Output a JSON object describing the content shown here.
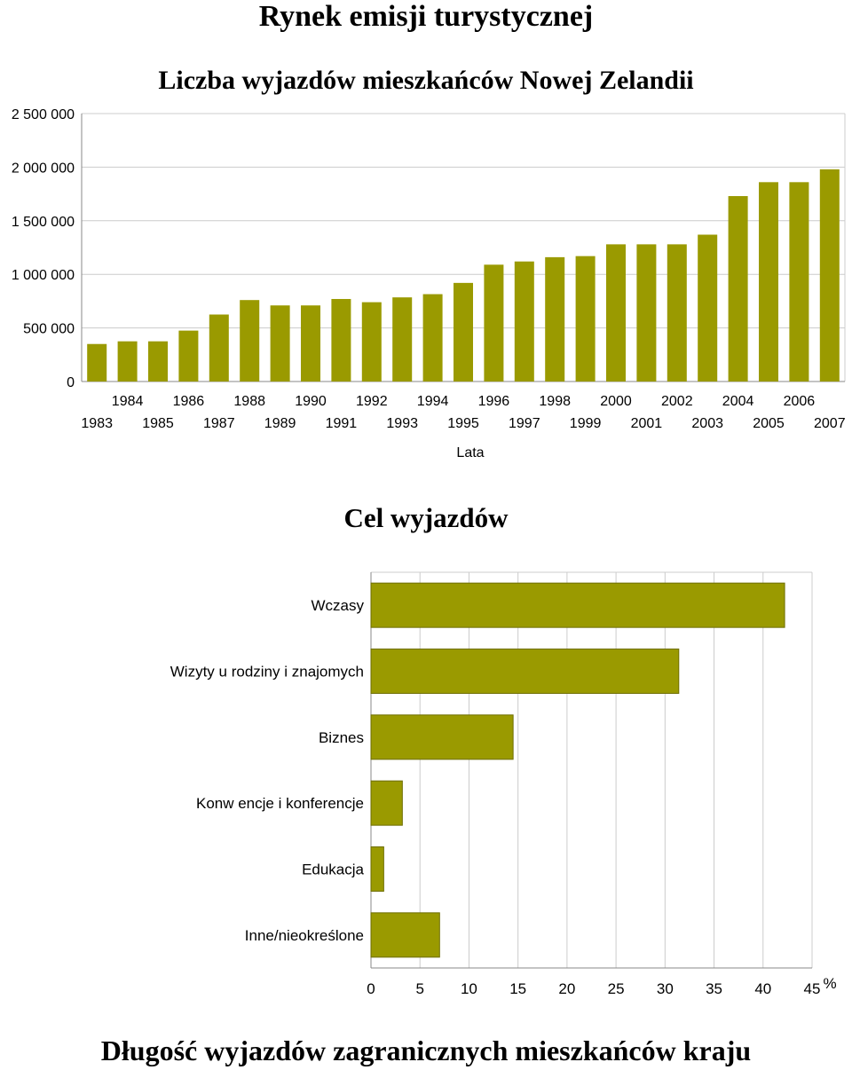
{
  "page_title": "Rynek emisji turystycznej",
  "footer_heading": "Długość wyjazdów zagranicznych mieszkańców kraju",
  "colors": {
    "bar": "#9a9a00",
    "bar_stroke": "#6e6e00",
    "grid": "#cccccc",
    "axis": "#888888"
  },
  "chart_data": [
    {
      "type": "bar",
      "title": "Liczba wyjazdów mieszkańców Nowej Zelandii",
      "xlabel": "Lata",
      "ylabel": "",
      "ylim": [
        0,
        2500000
      ],
      "yticks": [
        0,
        500000,
        1000000,
        1500000,
        2000000,
        2500000
      ],
      "ytick_labels": [
        "0",
        "500 000",
        "1 000 000",
        "1 500 000",
        "2 000 000",
        "2 500 000"
      ],
      "grid": true,
      "categories": [
        "1983",
        "1984",
        "1985",
        "1986",
        "1987",
        "1988",
        "1989",
        "1990",
        "1991",
        "1992",
        "1993",
        "1994",
        "1995",
        "1996",
        "1997",
        "1998",
        "1999",
        "2000",
        "2001",
        "2002",
        "2003",
        "2004",
        "2005",
        "2006",
        "2007"
      ],
      "values": [
        350000,
        375000,
        375000,
        475000,
        625000,
        760000,
        710000,
        710000,
        770000,
        740000,
        785000,
        815000,
        920000,
        1090000,
        1120000,
        1160000,
        1170000,
        1280000,
        1280000,
        1280000,
        1370000,
        1730000,
        1860000,
        1860000,
        1980000
      ]
    },
    {
      "type": "bar",
      "orientation": "horizontal",
      "title": "Cel wyjazdów",
      "xlabel": "%",
      "ylabel": "",
      "xlim": [
        0,
        45
      ],
      "xticks": [
        0,
        5,
        10,
        15,
        20,
        25,
        30,
        35,
        40,
        45
      ],
      "grid": true,
      "categories": [
        "Wczasy",
        "Wizyty u rodziny i znajomych",
        "Biznes",
        "Konw encje i konferencje",
        "Edukacja",
        "Inne/nieokreślone"
      ],
      "values": [
        42.2,
        31.4,
        14.5,
        3.2,
        1.3,
        7.0
      ]
    }
  ]
}
